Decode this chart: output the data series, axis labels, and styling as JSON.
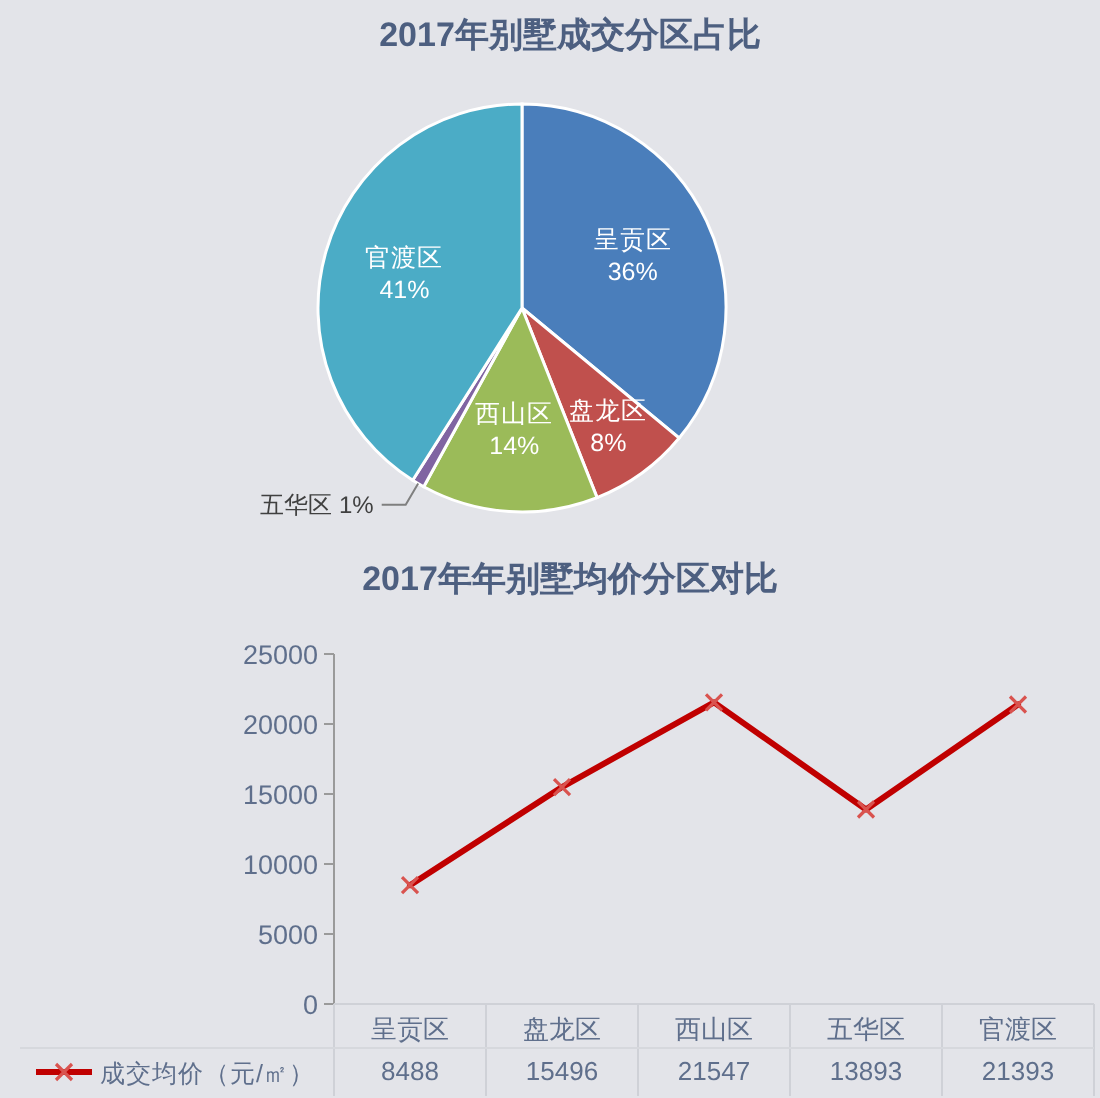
{
  "chart_data": [
    {
      "type": "pie",
      "title": "2017年别墅成交分区占比",
      "categories": [
        "呈贡区",
        "盘龙区",
        "西山区",
        "五华区",
        "官渡区"
      ],
      "values": [
        36,
        8,
        14,
        1,
        41
      ],
      "colors": [
        "#4a7ebb",
        "#c0504d",
        "#9bbb59",
        "#8064a2",
        "#4bacc6"
      ],
      "value_labels": [
        "36%",
        "8%",
        "14%",
        "1%",
        "41%"
      ]
    },
    {
      "type": "line",
      "title": "2017年年别墅均价分区对比",
      "categories": [
        "呈贡区",
        "盘龙区",
        "西山区",
        "五华区",
        "官渡区"
      ],
      "series": [
        {
          "name": "成交均价（元/㎡）",
          "color": "#c00000",
          "values": [
            8488,
            15496,
            21547,
            13893,
            21393
          ]
        }
      ],
      "ylim": [
        0,
        25000
      ],
      "yticks": [
        0,
        5000,
        10000,
        15000,
        20000,
        25000
      ],
      "marker": "cross",
      "line_style": "solid",
      "data_labels": true,
      "legend": "bottom"
    }
  ]
}
